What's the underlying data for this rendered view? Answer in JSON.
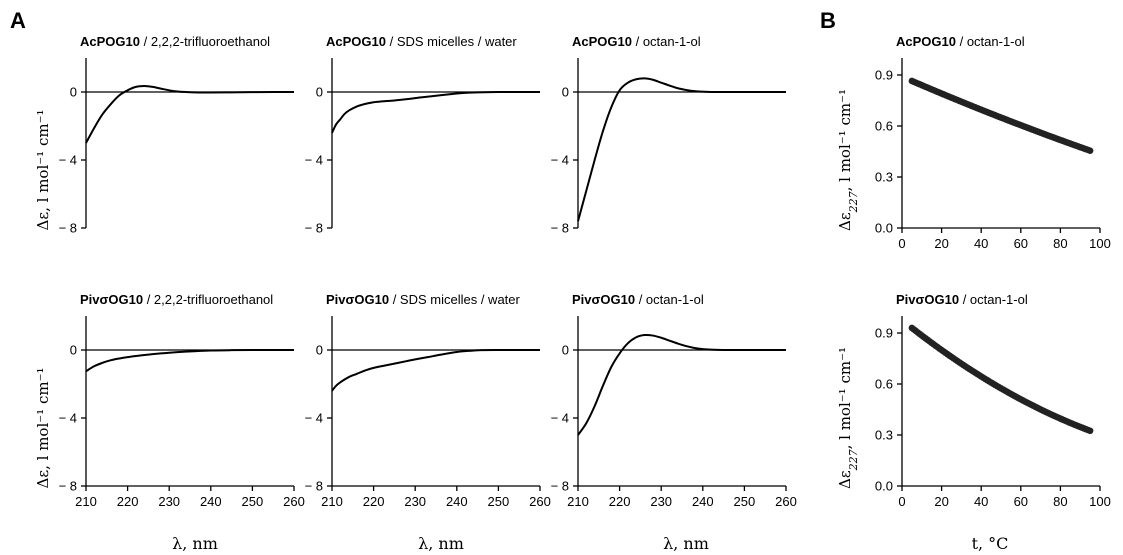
{
  "panel_letters": [
    "A",
    "B"
  ],
  "cd_ylabel": "Δε, l mol⁻¹ cm⁻¹",
  "melt_ylabel_main": "Δε",
  "melt_ylabel_sub": "227",
  "melt_ylabel_rest": ", l mol⁻¹ cm⁻¹",
  "cd_xlabel": "λ, nm",
  "melt_xlabel": "t, °C",
  "chart_data": [
    {
      "type": "line",
      "title_bold": "AcPOG10",
      "title_rest": " / 2,2,2-trifluoroethanol",
      "xlim": [
        210,
        260
      ],
      "ylim": [
        -8,
        2
      ],
      "xticks": [
        "210",
        "220",
        "230",
        "240",
        "250",
        "260"
      ],
      "yticks": [
        "0",
        "− 4",
        "− 8"
      ],
      "ytick_values": [
        0,
        -4,
        -8
      ],
      "series": [
        {
          "x": [
            210,
            212,
            214,
            216,
            218,
            220,
            222,
            224,
            226,
            228,
            230,
            232,
            234,
            236,
            238,
            240,
            245,
            250,
            255,
            260
          ],
          "y": [
            -3.0,
            -2.1,
            -1.3,
            -0.7,
            -0.2,
            0.1,
            0.3,
            0.35,
            0.3,
            0.2,
            0.1,
            0.03,
            0,
            -0.02,
            -0.03,
            -0.03,
            -0.02,
            -0.01,
            0,
            0
          ]
        }
      ]
    },
    {
      "type": "line",
      "title_bold": "AcPOG10",
      "title_rest": " / SDS micelles / water",
      "xlim": [
        210,
        260
      ],
      "ylim": [
        -8,
        2
      ],
      "xticks": [
        "210",
        "220",
        "230",
        "240",
        "250",
        "260"
      ],
      "yticks": [
        "0",
        "− 4",
        "− 8"
      ],
      "ytick_values": [
        0,
        -4,
        -8
      ],
      "series": [
        {
          "x": [
            210,
            211,
            212,
            213,
            214,
            216,
            218,
            220,
            222,
            225,
            228,
            230,
            232,
            235,
            238,
            240,
            243,
            245,
            250,
            255,
            260
          ],
          "y": [
            -2.4,
            -1.9,
            -1.6,
            -1.3,
            -1.1,
            -0.85,
            -0.7,
            -0.6,
            -0.55,
            -0.5,
            -0.42,
            -0.36,
            -0.3,
            -0.22,
            -0.14,
            -0.09,
            -0.04,
            -0.02,
            0,
            0,
            0
          ]
        }
      ]
    },
    {
      "type": "line",
      "title_bold": "AcPOG10",
      "title_rest": " / octan-1-ol",
      "xlim": [
        210,
        260
      ],
      "ylim": [
        -8,
        2
      ],
      "xticks": [
        "210",
        "220",
        "230",
        "240",
        "250",
        "260"
      ],
      "yticks": [
        "0",
        "− 4",
        "− 8"
      ],
      "ytick_values": [
        0,
        -4,
        -8
      ],
      "series": [
        {
          "x": [
            210,
            212,
            214,
            216,
            218,
            220,
            222,
            224,
            226,
            228,
            230,
            232,
            234,
            236,
            238,
            240,
            242,
            245,
            250,
            255,
            260
          ],
          "y": [
            -7.6,
            -5.8,
            -4.0,
            -2.3,
            -0.9,
            0.1,
            0.55,
            0.75,
            0.8,
            0.72,
            0.55,
            0.38,
            0.22,
            0.12,
            0.05,
            0.02,
            0,
            0,
            0,
            0,
            0
          ]
        }
      ]
    },
    {
      "type": "scatter",
      "title_bold": "AcPOG10",
      "title_rest": " / octan-1-ol",
      "xlim": [
        0,
        100
      ],
      "ylim": [
        0,
        1.0
      ],
      "xticks": [
        "0",
        "20",
        "40",
        "60",
        "80",
        "100"
      ],
      "yticks": [
        "0.9",
        "0.6",
        "0.3",
        "0.0"
      ],
      "ytick_values": [
        0.9,
        0.6,
        0.3,
        0.0
      ],
      "series": [
        {
          "x_start": 5,
          "x_end": 95,
          "x_step": 1,
          "y_start": 0.865,
          "y_end": 0.455,
          "curvature": 0.1
        }
      ]
    },
    {
      "type": "line",
      "title_bold": "PivσOG10",
      "title_rest": " / 2,2,2-trifluoroethanol",
      "xlim": [
        210,
        260
      ],
      "ylim": [
        -8,
        2
      ],
      "xticks": [
        "210",
        "220",
        "230",
        "240",
        "250",
        "260"
      ],
      "yticks": [
        "0",
        "− 4",
        "− 8"
      ],
      "ytick_values": [
        0,
        -4,
        -8
      ],
      "series": [
        {
          "x": [
            210,
            212,
            214,
            216,
            218,
            220,
            222,
            225,
            228,
            230,
            233,
            236,
            240,
            245,
            250,
            255,
            260
          ],
          "y": [
            -1.25,
            -0.95,
            -0.75,
            -0.6,
            -0.5,
            -0.42,
            -0.35,
            -0.27,
            -0.2,
            -0.16,
            -0.11,
            -0.07,
            -0.03,
            -0.01,
            0,
            0,
            0
          ]
        }
      ]
    },
    {
      "type": "line",
      "title_bold": "PivσOG10",
      "title_rest": " / SDS micelles / water",
      "xlim": [
        210,
        260
      ],
      "ylim": [
        -8,
        2
      ],
      "xticks": [
        "210",
        "220",
        "230",
        "240",
        "250",
        "260"
      ],
      "yticks": [
        "0",
        "− 4",
        "− 8"
      ],
      "ytick_values": [
        0,
        -4,
        -8
      ],
      "series": [
        {
          "x": [
            210,
            211,
            212,
            214,
            216,
            218,
            220,
            222,
            225,
            228,
            230,
            233,
            236,
            240,
            243,
            246,
            250,
            255,
            260
          ],
          "y": [
            -2.4,
            -2.1,
            -1.9,
            -1.6,
            -1.4,
            -1.2,
            -1.05,
            -0.95,
            -0.8,
            -0.65,
            -0.55,
            -0.42,
            -0.28,
            -0.12,
            -0.05,
            -0.01,
            0,
            0,
            0
          ]
        }
      ]
    },
    {
      "type": "line",
      "title_bold": "PivσOG10",
      "title_rest": " / octan-1-ol",
      "xlim": [
        210,
        260
      ],
      "ylim": [
        -8,
        2
      ],
      "xticks": [
        "210",
        "220",
        "230",
        "240",
        "250",
        "260"
      ],
      "yticks": [
        "0",
        "− 4",
        "− 8"
      ],
      "ytick_values": [
        0,
        -4,
        -8
      ],
      "series": [
        {
          "x": [
            210,
            212,
            214,
            216,
            218,
            220,
            222,
            224,
            226,
            228,
            230,
            232,
            234,
            236,
            238,
            240,
            242,
            245,
            250,
            255,
            260
          ],
          "y": [
            -5.0,
            -4.3,
            -3.3,
            -2.1,
            -1.0,
            -0.2,
            0.4,
            0.75,
            0.88,
            0.85,
            0.72,
            0.55,
            0.38,
            0.23,
            0.12,
            0.05,
            0.02,
            0,
            0,
            0,
            0
          ]
        }
      ]
    },
    {
      "type": "scatter",
      "title_bold": "PivσOG10",
      "title_rest": " / octan-1-ol",
      "xlim": [
        0,
        100
      ],
      "ylim": [
        0,
        1.0
      ],
      "xticks": [
        "0",
        "20",
        "40",
        "60",
        "80",
        "100"
      ],
      "yticks": [
        "0.9",
        "0.6",
        "0.3",
        "0.0"
      ],
      "ytick_values": [
        0.9,
        0.6,
        0.3,
        0.0
      ],
      "series": [
        {
          "x_start": 5,
          "x_end": 95,
          "x_step": 1,
          "y_start": 0.93,
          "y_end": 0.325,
          "curvature": 0.35
        }
      ]
    }
  ]
}
